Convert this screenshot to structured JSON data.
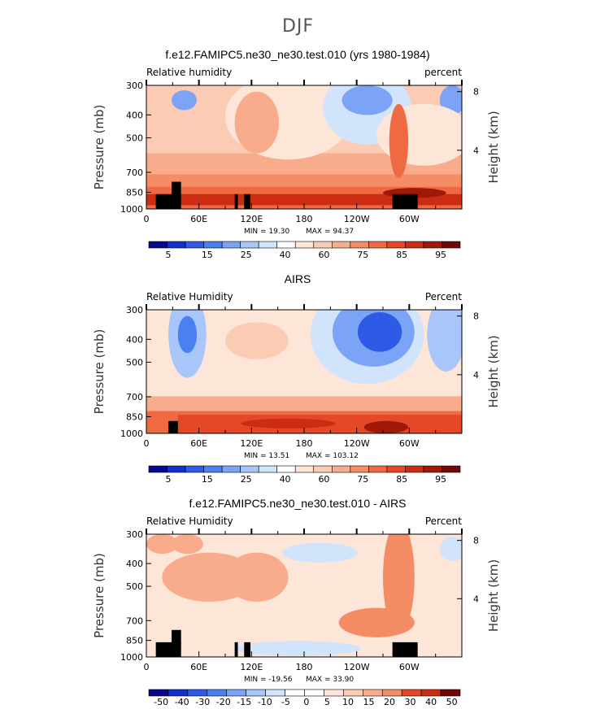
{
  "figure": {
    "title": "DJF"
  },
  "colors": {
    "scale": [
      "#08088c",
      "#1030c8",
      "#2d5ae6",
      "#4c7ff0",
      "#7ba4f6",
      "#a8c6fa",
      "#d2e4fb",
      "#ffffff",
      "#fde6d8",
      "#fbcbb4",
      "#f8ac8c",
      "#f48c66",
      "#ef6a43",
      "#e54826",
      "#cc2c12",
      "#a01808",
      "#700808"
    ],
    "land": "#000000"
  },
  "chart_data": [
    {
      "type": "heatmap",
      "title": "f.e12.FAMIPC5.ne30_ne30.test.010 (yrs 1980-1984)",
      "left_label": "Relative humidity",
      "right_label": "percent",
      "ylabel": "Pressure (mb)",
      "y2label": "Height (km)",
      "xlim": [
        0,
        360
      ],
      "ylim": [
        1000,
        300
      ],
      "xticks": [
        "0",
        "60E",
        "120E",
        "180",
        "120W",
        "60W"
      ],
      "yticks": [
        "300",
        "400",
        "500",
        "700",
        "850",
        "1000"
      ],
      "y2ticks": [
        "8",
        "4"
      ],
      "min_label": "MIN =  19.30",
      "max_label": "MAX =  94.37",
      "colorbar": {
        "labels": [
          "5",
          "15",
          "25",
          "40",
          "60",
          "75",
          "85",
          "95"
        ]
      }
    },
    {
      "type": "heatmap",
      "title": "AIRS",
      "left_label": "Relative Humidity",
      "right_label": "Percent",
      "ylabel": "Pressure (mb)",
      "y2label": "Height (km)",
      "xlim": [
        0,
        360
      ],
      "ylim": [
        1000,
        300
      ],
      "xticks": [
        "0",
        "60E",
        "120E",
        "180",
        "120W",
        "60W"
      ],
      "yticks": [
        "300",
        "400",
        "500",
        "700",
        "850",
        "1000"
      ],
      "y2ticks": [
        "8",
        "4"
      ],
      "min_label": "MIN =  13.51",
      "max_label": "MAX = 103.12",
      "colorbar": {
        "labels": [
          "5",
          "15",
          "25",
          "40",
          "60",
          "75",
          "85",
          "95"
        ]
      }
    },
    {
      "type": "heatmap",
      "title": "f.e12.FAMIPC5.ne30_ne30.test.010 - AIRS",
      "left_label": "Relative Humidity",
      "right_label": "Percent",
      "ylabel": "Pressure (mb)",
      "y2label": "Height (km)",
      "xlim": [
        0,
        360
      ],
      "ylim": [
        1000,
        300
      ],
      "xticks": [
        "0",
        "60E",
        "120E",
        "180",
        "120W",
        "60W"
      ],
      "yticks": [
        "300",
        "400",
        "500",
        "700",
        "850",
        "1000"
      ],
      "y2ticks": [
        "8",
        "4"
      ],
      "min_label": "MIN = -19.56",
      "max_label": "MAX =  33.90",
      "colorbar": {
        "labels": [
          "-50",
          "-40",
          "-30",
          "-20",
          "-15",
          "-10",
          "-5",
          "0",
          "5",
          "10",
          "15",
          "20",
          "30",
          "40",
          "50"
        ]
      }
    }
  ]
}
